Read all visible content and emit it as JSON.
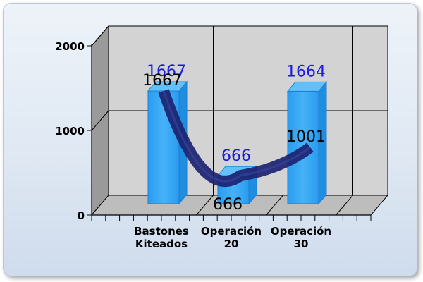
{
  "chart_data": {
    "type": "bar",
    "categories": [
      [
        "Bastones",
        "Kiteados"
      ],
      [
        "Operación",
        "20"
      ],
      [
        "Operación",
        "30"
      ]
    ],
    "series": [
      {
        "type": "bar",
        "values": [
          1667,
          666,
          1664
        ],
        "color": "#3aa8f4",
        "label_color": "#1a1adc"
      },
      {
        "type": "line",
        "values": [
          1667,
          666,
          1001
        ],
        "color": "#1c2370",
        "label_color": "#000000"
      }
    ],
    "y_ticks": [
      0,
      1000,
      2000
    ],
    "ylim": [
      0,
      2000
    ],
    "three_d": true,
    "grid": true,
    "legend": "none"
  }
}
